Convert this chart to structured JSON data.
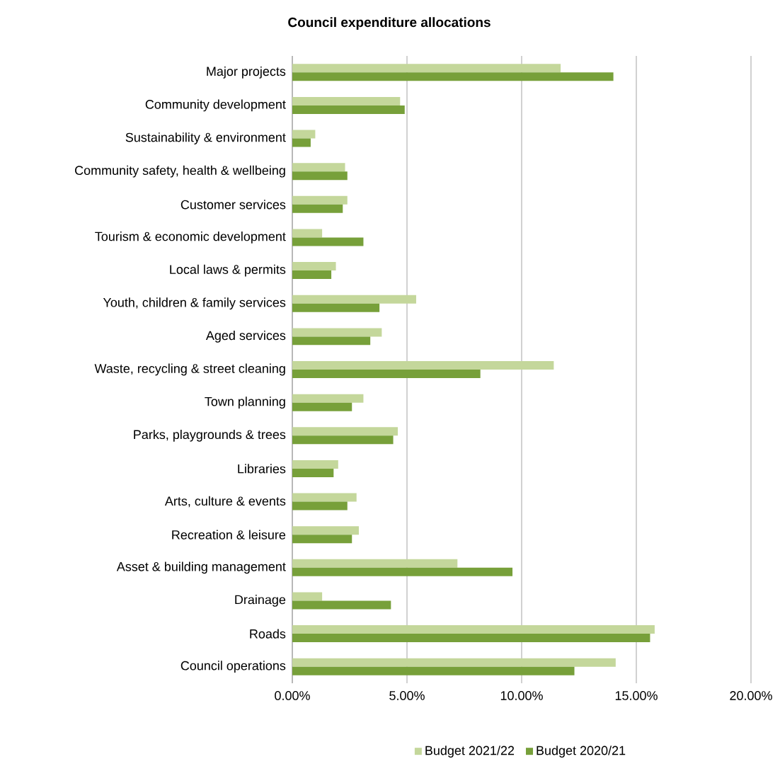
{
  "chart_data": {
    "type": "bar",
    "orientation": "horizontal",
    "title": "Council expenditure allocations",
    "categories": [
      "Major projects",
      "Community development",
      "Sustainability & environment",
      "Community safety, health & wellbeing",
      "Customer services",
      "Tourism & economic development",
      "Local laws & permits",
      "Youth, children & family services",
      "Aged services",
      "Waste, recycling & street cleaning",
      "Town planning",
      "Parks, playgrounds & trees",
      "Libraries",
      "Arts, culture & events",
      "Recreation & leisure",
      "Asset & building management",
      "Drainage",
      "Roads",
      "Council operations"
    ],
    "series": [
      {
        "name": "Budget 2021/22",
        "color": "#c4d79b",
        "values": [
          11.7,
          4.7,
          1.0,
          2.3,
          2.4,
          1.3,
          1.9,
          5.4,
          3.9,
          11.4,
          3.1,
          4.6,
          2.0,
          2.8,
          2.9,
          7.2,
          1.3,
          15.8,
          14.1
        ]
      },
      {
        "name": "Budget 2020/21",
        "color": "#77a03a",
        "values": [
          14.0,
          4.9,
          0.8,
          2.4,
          2.2,
          3.1,
          1.7,
          3.8,
          3.4,
          8.2,
          2.6,
          4.4,
          1.8,
          2.4,
          2.6,
          9.6,
          4.3,
          15.6,
          12.3
        ]
      }
    ],
    "xlim": [
      0,
      20
    ],
    "xticks": [
      {
        "value": 0,
        "label": "0.00%"
      },
      {
        "value": 5,
        "label": "5.00%"
      },
      {
        "value": 10,
        "label": "10.00%"
      },
      {
        "value": 15,
        "label": "15.00%"
      },
      {
        "value": 20,
        "label": "20.00%"
      }
    ],
    "grid": "x",
    "legend": "bottom"
  }
}
